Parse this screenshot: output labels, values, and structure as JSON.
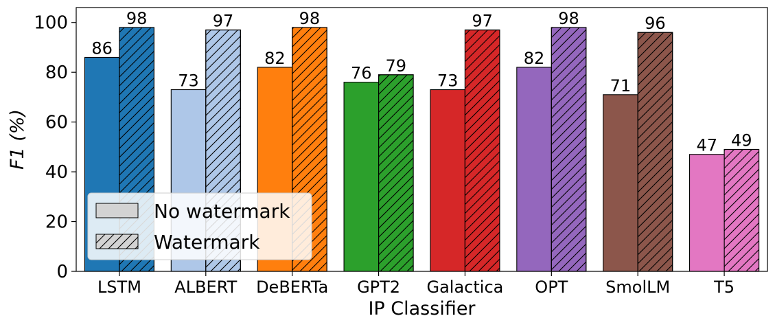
{
  "chart_data": {
    "type": "bar",
    "categories": [
      "LSTM",
      "ALBERT",
      "DeBERTa",
      "GPT2",
      "Galactica",
      "OPT",
      "SmolLM",
      "T5"
    ],
    "series": [
      {
        "name": "No watermark",
        "values": [
          86,
          73,
          82,
          76,
          73,
          82,
          71,
          47
        ],
        "hatch": false
      },
      {
        "name": "Watermark",
        "values": [
          98,
          97,
          98,
          79,
          97,
          98,
          96,
          49
        ],
        "hatch": true
      }
    ],
    "category_colors": [
      "#1f77b4",
      "#aec7e8",
      "#ff7f0e",
      "#2ca02c",
      "#d62728",
      "#9467bd",
      "#8c564b",
      "#e377c2"
    ],
    "xlabel": "IP Classifier",
    "ylabel": "F1 (%)",
    "ylim": [
      0,
      106
    ],
    "yticks": [
      0,
      20,
      40,
      60,
      80,
      100
    ],
    "grid": false,
    "legend": {
      "placement": "lower-left",
      "entries": [
        "No watermark",
        "Watermark"
      ],
      "swatch_color": "#d3d3d3"
    }
  }
}
